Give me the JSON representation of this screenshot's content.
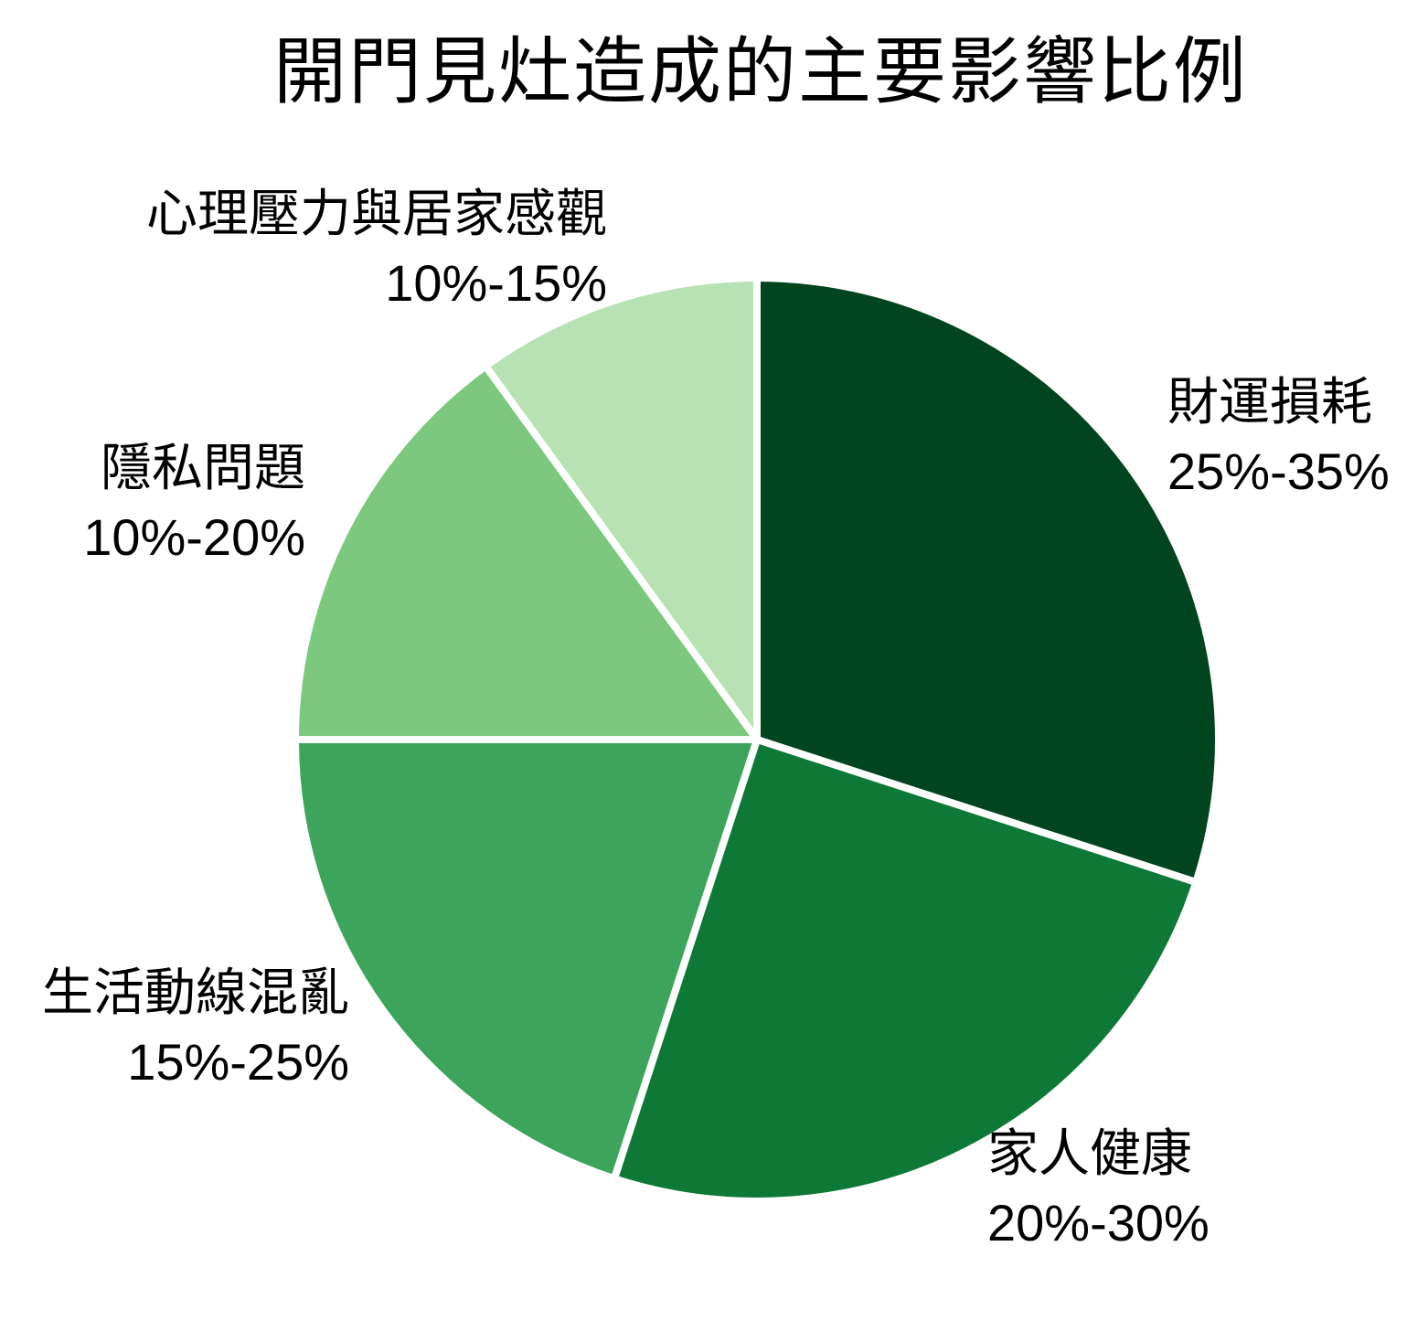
{
  "chart_data": {
    "type": "pie",
    "title": "開門見灶造成的主要影響比例",
    "start_angle_deg": 90,
    "direction": "clockwise",
    "legend": "none",
    "slices": [
      {
        "label": "財運損耗",
        "range": "25%-35%",
        "value": 30,
        "color": "#004520"
      },
      {
        "label": "家人健康",
        "range": "20%-30%",
        "value": 25,
        "color": "#0e7836"
      },
      {
        "label": "生活動線混亂",
        "range": "15%-25%",
        "value": 20,
        "color": "#3da45b"
      },
      {
        "label": "隱私問題",
        "range": "10%-20%",
        "value": 15,
        "color": "#7cc87e"
      },
      {
        "label": "心理壓力與居家感觀",
        "range": "10%-15%",
        "value": 10,
        "color": "#b7e3b4"
      }
    ],
    "divider_color": "#ffffff",
    "text_color": "#000000",
    "background_color": "#ffffff"
  }
}
